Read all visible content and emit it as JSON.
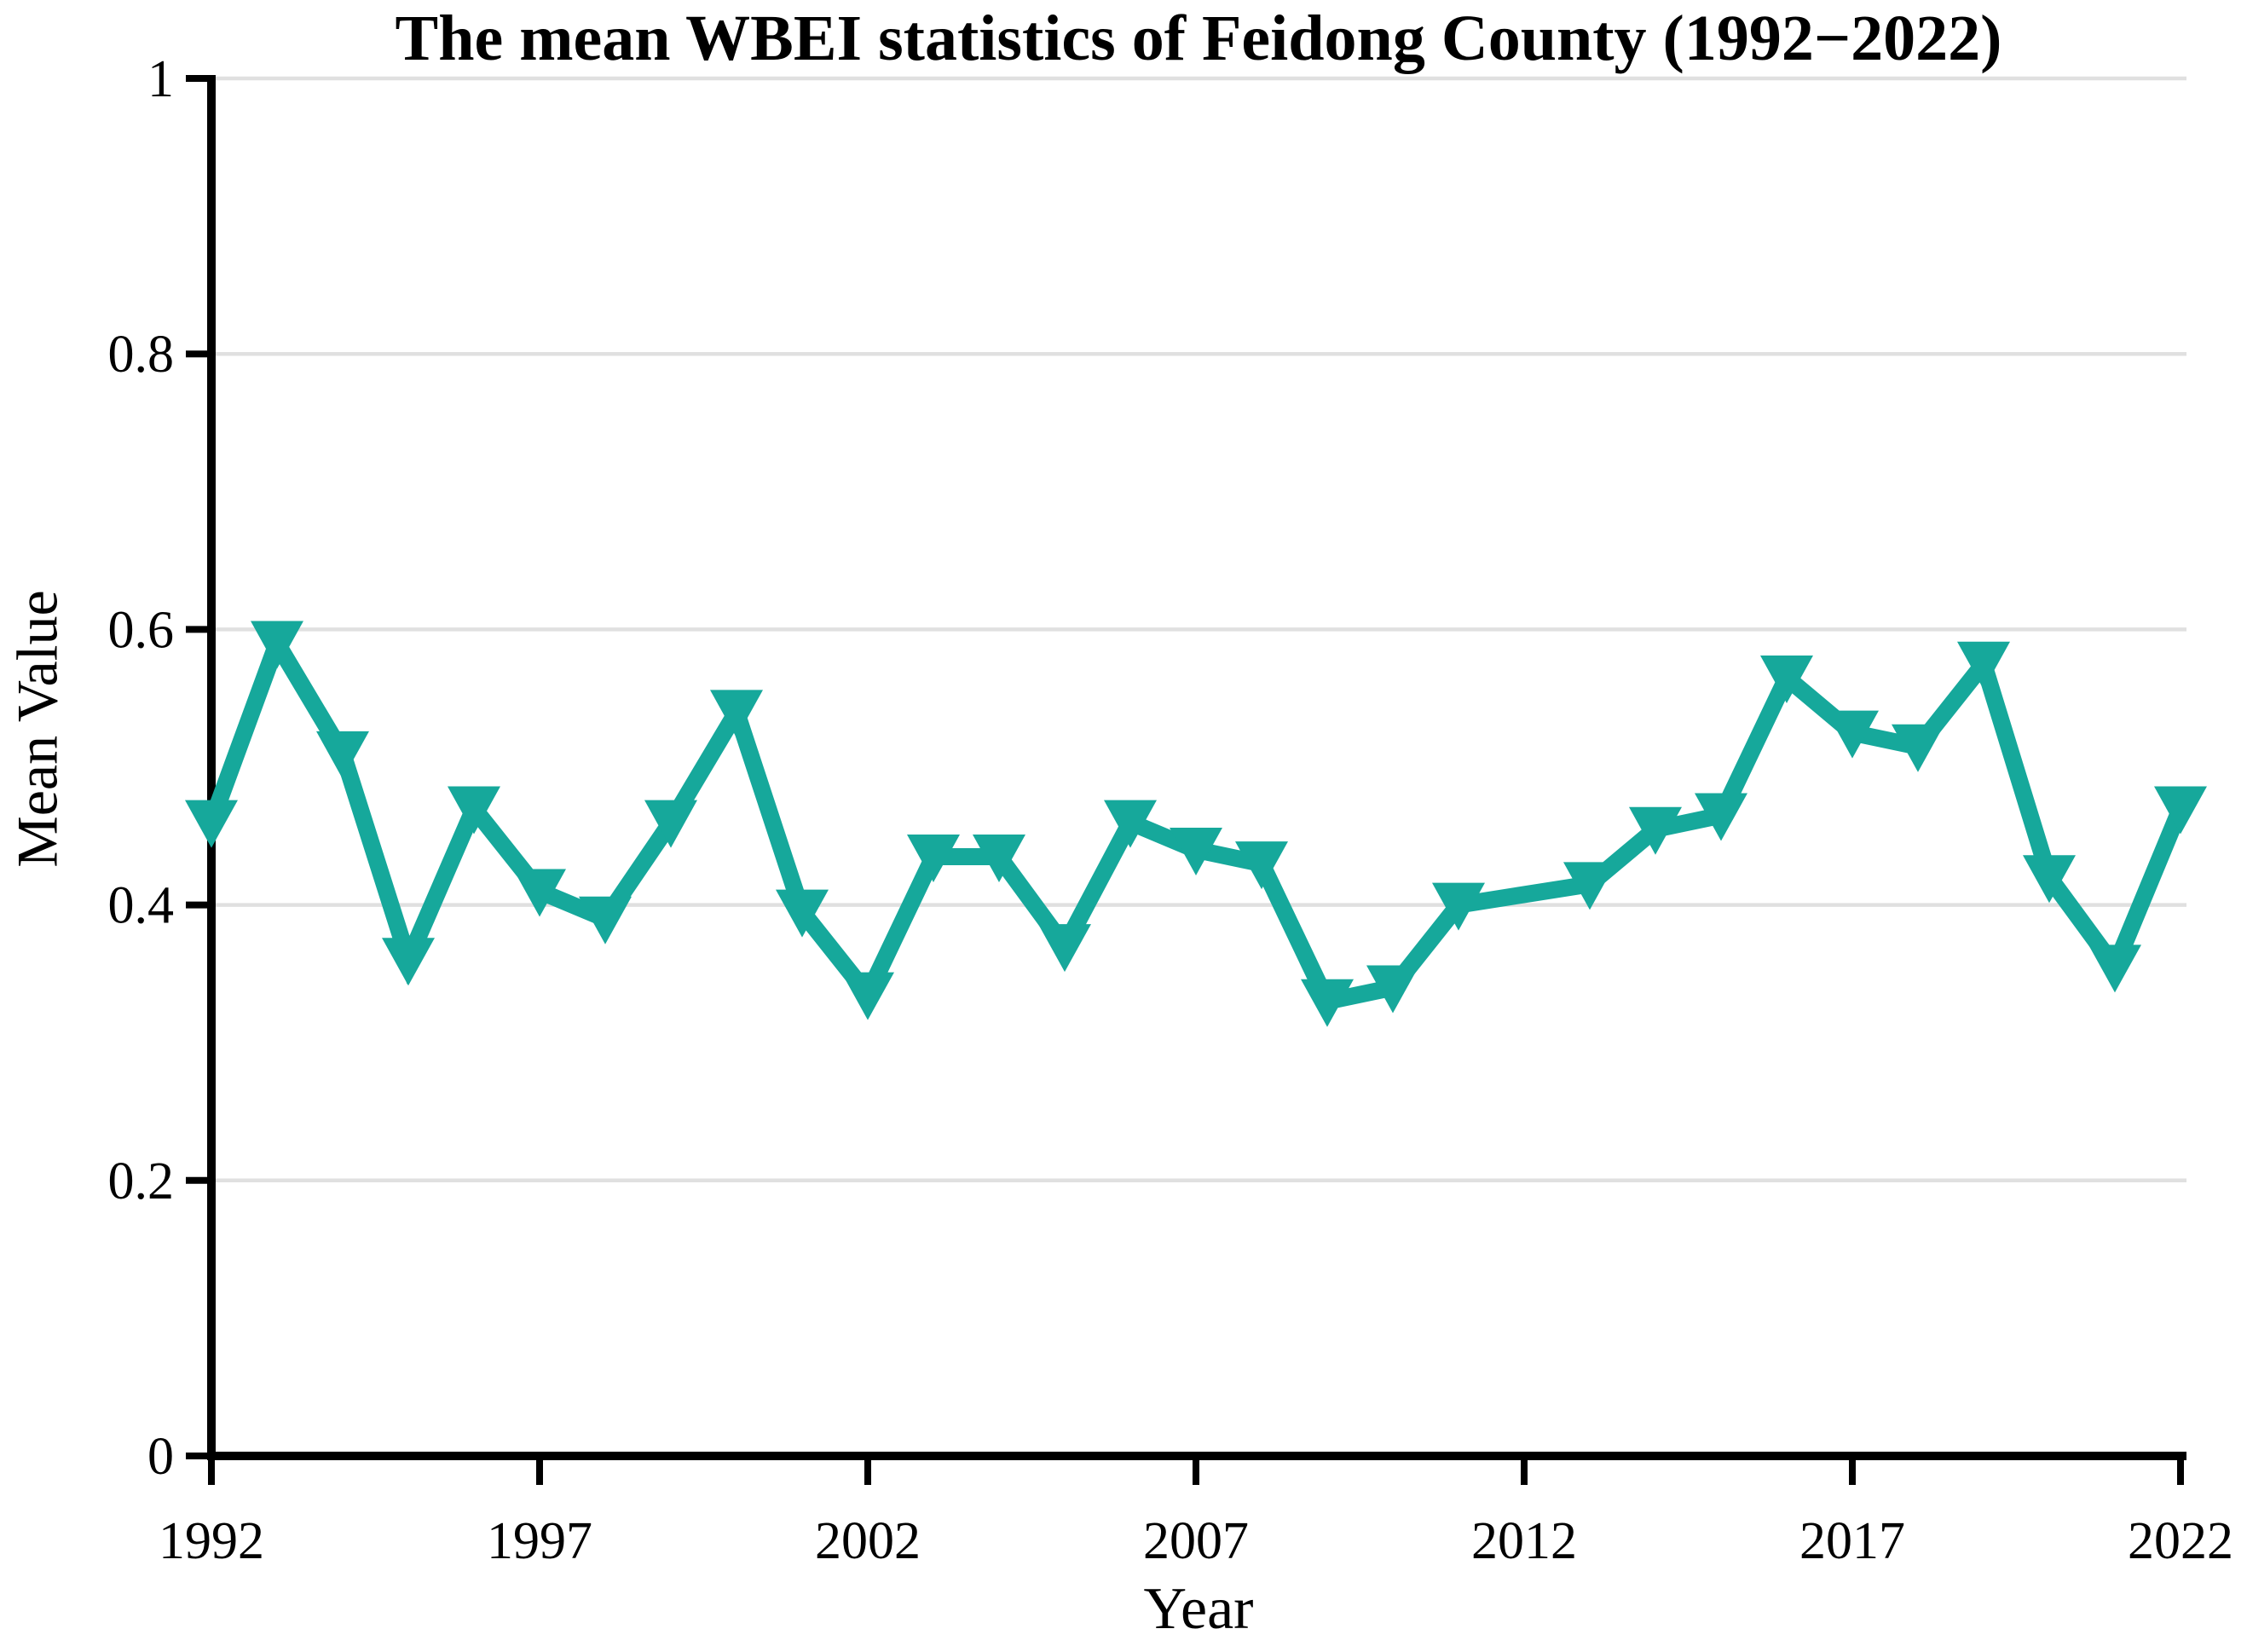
{
  "title": "The mean WBEI statistics of Feidong County (1992−2022)",
  "chart_data": {
    "type": "line",
    "title": "The mean WBEI statistics of Feidong County (1992−2022)",
    "xlabel": "Year",
    "ylabel": "Mean Value",
    "x": [
      1992,
      1993,
      1994,
      1995,
      1996,
      1997,
      1998,
      1999,
      2000,
      2001,
      2002,
      2003,
      2004,
      2005,
      2006,
      2007,
      2008,
      2009,
      2010,
      2011,
      2013,
      2014,
      2015,
      2016,
      2017,
      2018,
      2019,
      2020,
      2021,
      2022
    ],
    "y": [
      0.46,
      0.59,
      0.51,
      0.36,
      0.47,
      0.41,
      0.39,
      0.46,
      0.54,
      0.395,
      0.335,
      0.435,
      0.435,
      0.37,
      0.46,
      0.44,
      0.43,
      0.33,
      0.34,
      0.4,
      0.415,
      0.455,
      0.465,
      0.565,
      0.525,
      0.515,
      0.575,
      0.42,
      0.355,
      0.47
    ],
    "xlim": [
      1992,
      2022
    ],
    "ylim": [
      0,
      1
    ],
    "xticks": [
      1992,
      1997,
      2002,
      2007,
      2012,
      2017,
      2022
    ],
    "yticks": [
      0,
      0.2,
      0.4,
      0.6,
      0.8,
      1
    ],
    "ytick_labels": [
      "0",
      "0.2",
      "0.4",
      "0.6",
      "0.8",
      "1"
    ],
    "grid": "horizontal",
    "legend_position": "none",
    "marker": "triangle-down",
    "line_color": "#16A89B",
    "grid_color": "#E0E0E0",
    "axis_color": "#000000",
    "tick_font_size": 62,
    "note": ""
  }
}
